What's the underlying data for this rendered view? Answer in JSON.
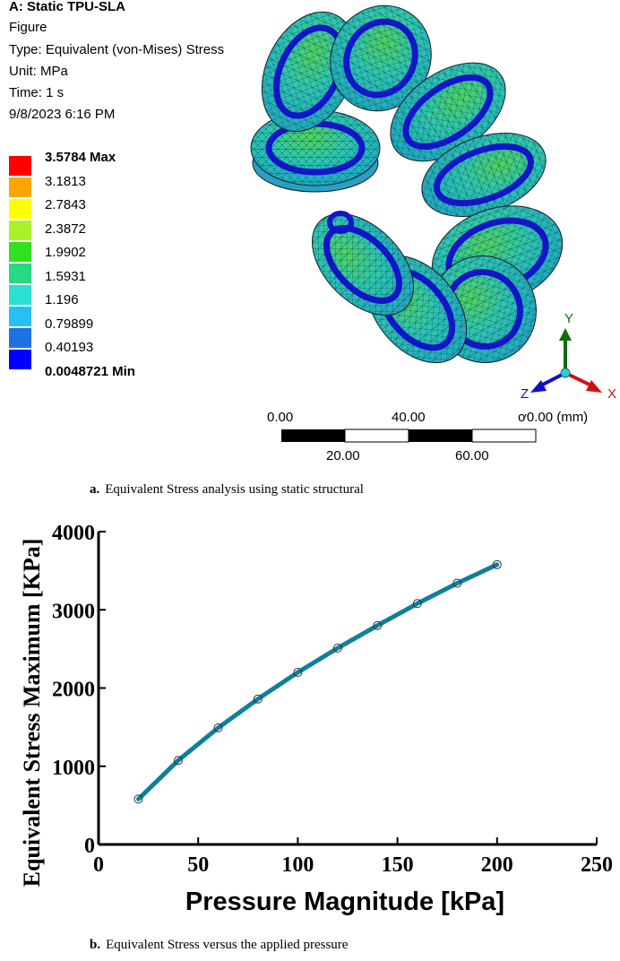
{
  "fea": {
    "header": [
      "A: Static TPU-SLA",
      "Figure",
      "Type: Equivalent (von-Mises) Stress",
      "Unit: MPa",
      "Time: 1 s",
      "9/8/2023 6:16 PM"
    ],
    "legend": [
      {
        "label": "3.5784 Max",
        "color": "#ff0000",
        "bold": true
      },
      {
        "label": "3.1813",
        "color": "#ffa500",
        "bold": false
      },
      {
        "label": "2.7843",
        "color": "#ffff00",
        "bold": false
      },
      {
        "label": "2.3872",
        "color": "#a9f22b",
        "bold": false
      },
      {
        "label": "1.9902",
        "color": "#31e01f",
        "bold": false
      },
      {
        "label": "1.5931",
        "color": "#28d883",
        "bold": false
      },
      {
        "label": "1.196",
        "color": "#2ae0d0",
        "bold": false
      },
      {
        "label": "0.79899",
        "color": "#28bff2",
        "bold": false
      },
      {
        "label": "0.40193",
        "color": "#1f72e5",
        "bold": false
      },
      {
        "label": "0.0048721 Min",
        "color": "#0000ff",
        "bold": true
      }
    ],
    "scale_bar": {
      "top_labels": [
        "0.00",
        "40.00",
        "ơ0.00 (mm)"
      ],
      "bottom_labels": [
        "20.00",
        "60.00"
      ]
    },
    "axes_triad": {
      "y": "Y",
      "x": "X",
      "z": "Z"
    }
  },
  "captions": {
    "a_prefix": "a.",
    "a_text": "Equivalent Stress analysis using static structural",
    "b_prefix": "b.",
    "b_text": "Equivalent Stress versus the applied pressure"
  },
  "chart_data": {
    "type": "line",
    "title": "",
    "xlabel": "Pressure Magnitude [kPa]",
    "ylabel": "Equivalent Stress Maximum [KPa]",
    "xlim": [
      0,
      250
    ],
    "ylim": [
      0,
      4000
    ],
    "xticks": [
      0,
      50,
      100,
      150,
      200,
      250
    ],
    "yticks": [
      0,
      1000,
      2000,
      3000,
      4000
    ],
    "grid": false,
    "line_color": "#0f7f9a",
    "series": [
      {
        "x": [
          20,
          40,
          60,
          80,
          100,
          120,
          140,
          160,
          180,
          200
        ],
        "y": [
          580,
          1075,
          1490,
          1860,
          2200,
          2510,
          2800,
          3080,
          3340,
          3578
        ]
      }
    ]
  }
}
